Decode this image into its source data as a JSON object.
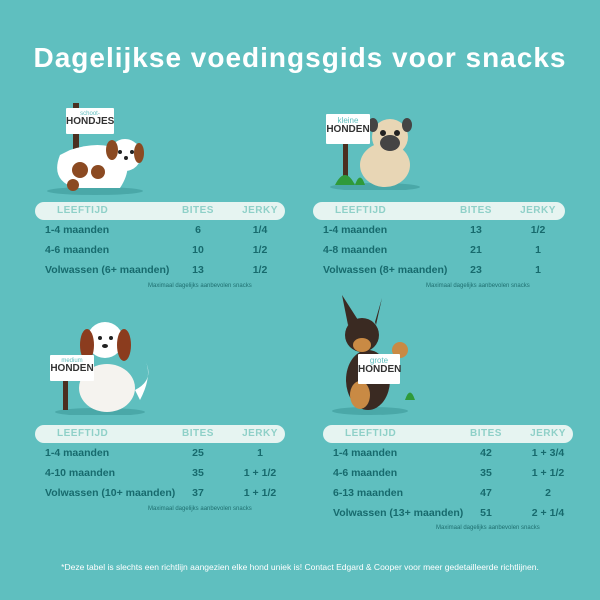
{
  "title": "Dagelijkse voedingsgids voor snacks",
  "headers": {
    "age": "LEEFTIJD",
    "bites": "BITES",
    "jerky": "JERKY"
  },
  "note": "Maximaal dagelijks aanbevolen snacks",
  "sections": [
    {
      "sign_top": "schoot-",
      "sign_bottom": "HONDJES",
      "rows": [
        [
          "1-4 maanden",
          "6",
          "1/4"
        ],
        [
          "4-6 maanden",
          "10",
          "1/2"
        ],
        [
          "Volwassen (6+ maanden)",
          "13",
          "1/2"
        ]
      ]
    },
    {
      "sign_top": "kleine",
      "sign_bottom": "HONDEN",
      "rows": [
        [
          "1-4 maanden",
          "13",
          "1/2"
        ],
        [
          "4-8 maanden",
          "21",
          "1"
        ],
        [
          "Volwassen (8+ maanden)",
          "23",
          "1"
        ]
      ]
    },
    {
      "sign_top": "medium",
      "sign_bottom": "HONDEN",
      "rows": [
        [
          "1-4 maanden",
          "25",
          "1"
        ],
        [
          "4-10 maanden",
          "35",
          "1 + 1/2"
        ],
        [
          "Volwassen (10+ maanden)",
          "37",
          "1 + 1/2"
        ]
      ]
    },
    {
      "sign_top": "grote",
      "sign_bottom": "HONDEN",
      "rows": [
        [
          "1-4 maanden",
          "42",
          "1 + 3/4"
        ],
        [
          "4-6 maanden",
          "35",
          "1 + 1/2"
        ],
        [
          "6-13 maanden",
          "47",
          "2"
        ],
        [
          "Volwassen (13+ maanden)",
          "51",
          "2 + 1/4"
        ]
      ]
    }
  ],
  "footnote": "*Deze tabel is slechts een richtlijn aangezien elke hond uniek is! Contact Edgard & Cooper voor meer gedetailleerde richtlijnen.",
  "colors": {
    "background": "#5fbfbf",
    "header_pill": "#e6f4f1",
    "text": "#176a6d"
  }
}
